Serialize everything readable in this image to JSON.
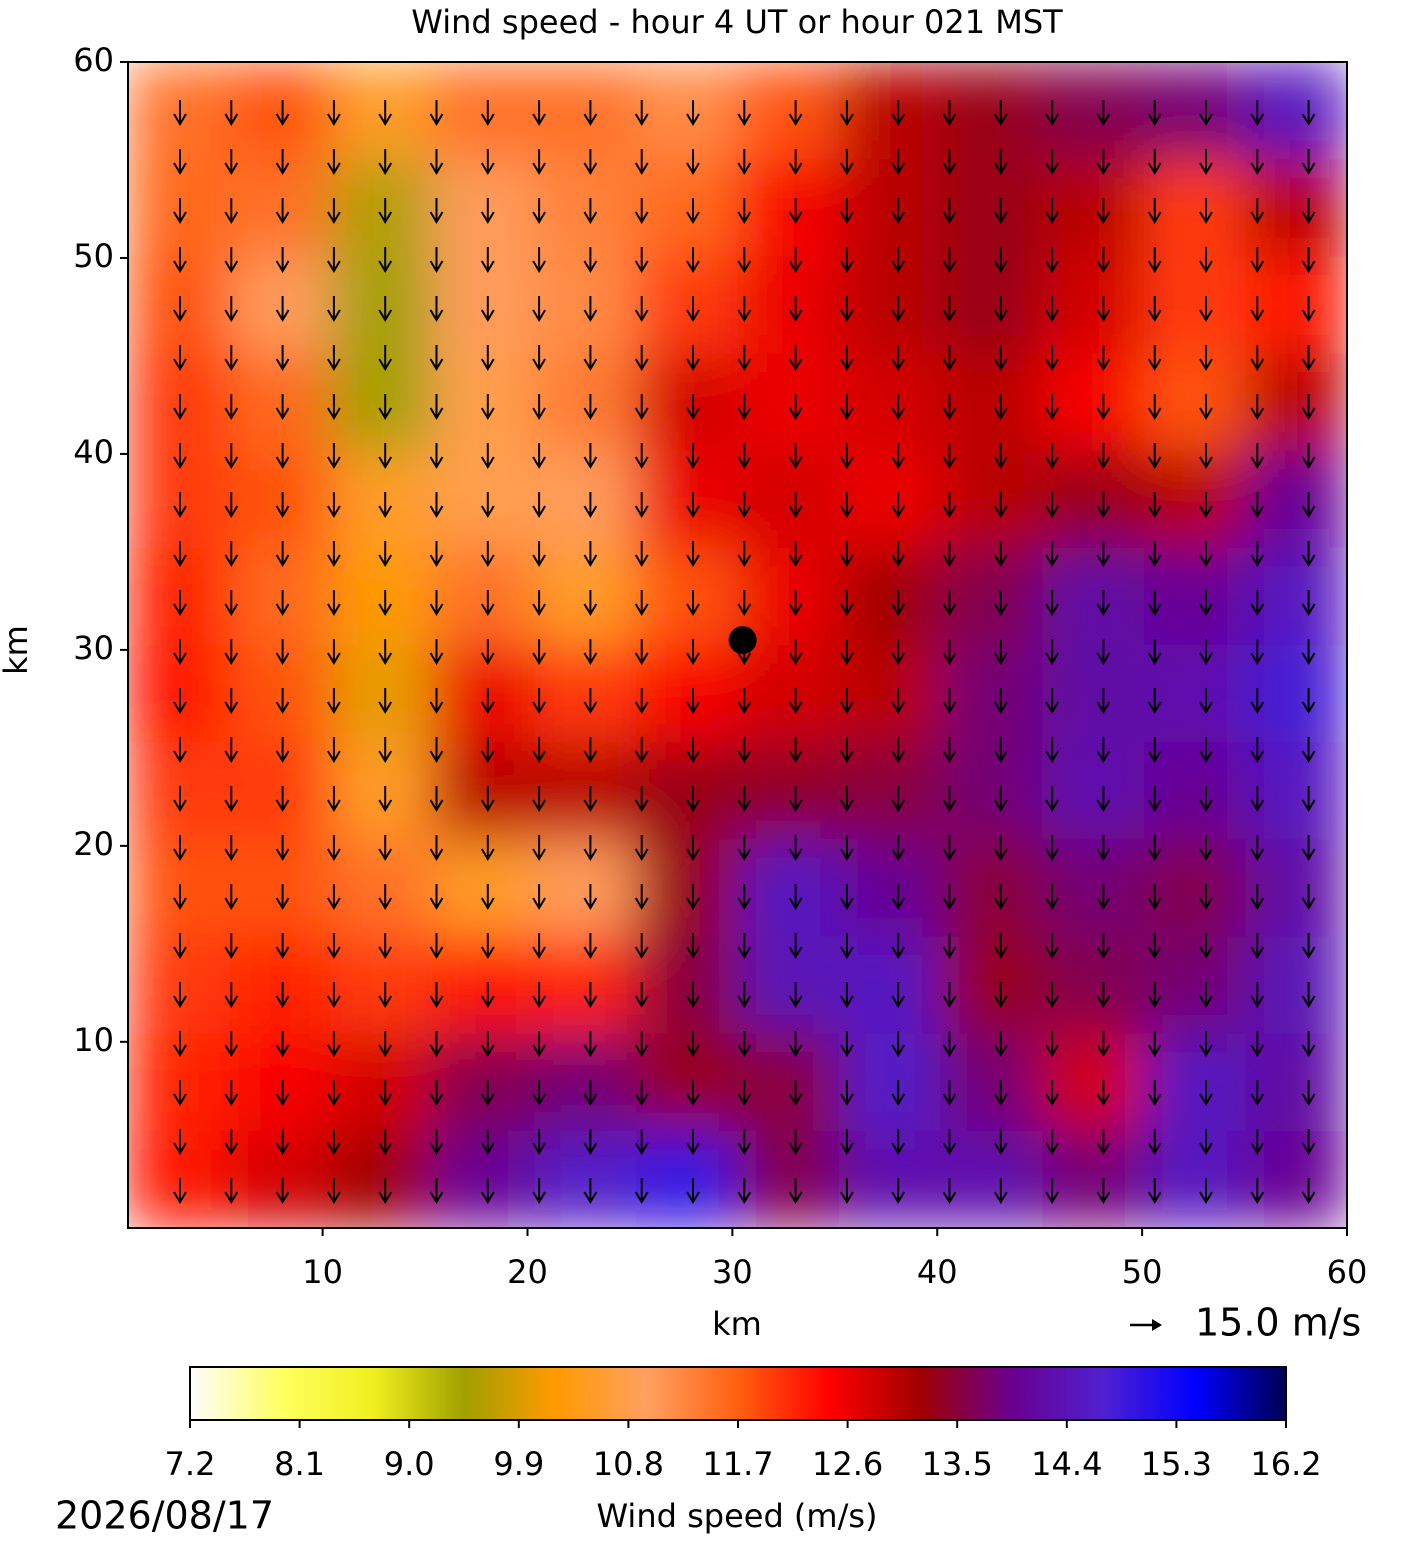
{
  "chart_data": {
    "type": "heatmap",
    "title": "Wind speed - hour 4 UT or hour 021 MST",
    "x_label": "km",
    "y_label": "km",
    "xlim": [
      0.5,
      60
    ],
    "ylim": [
      0.5,
      60
    ],
    "xticks": [
      10,
      20,
      30,
      40,
      50,
      60
    ],
    "yticks": [
      10,
      20,
      30,
      40,
      50,
      60
    ],
    "z": [
      [
        11.5,
        11.8,
        10.5,
        11.5,
        11.5,
        11.2,
        11.8,
        13.0,
        13.3,
        13.6,
        13.8,
        14.5
      ],
      [
        11.6,
        11.5,
        9.6,
        11.0,
        11.3,
        11.6,
        12.5,
        13.0,
        13.3,
        13.0,
        12.0,
        13.0
      ],
      [
        11.8,
        11.0,
        9.5,
        11.0,
        11.2,
        12.0,
        12.6,
        13.0,
        13.3,
        12.8,
        12.0,
        12.3
      ],
      [
        12.0,
        11.6,
        9.5,
        10.8,
        11.4,
        12.8,
        12.6,
        12.8,
        13.0,
        12.5,
        11.8,
        13.0
      ],
      [
        12.0,
        11.8,
        10.5,
        10.8,
        11.0,
        12.6,
        12.8,
        12.6,
        13.0,
        13.3,
        13.0,
        14.0
      ],
      [
        12.2,
        11.6,
        10.2,
        11.5,
        10.5,
        11.8,
        12.6,
        13.2,
        13.6,
        14.2,
        14.0,
        14.5
      ],
      [
        12.3,
        11.8,
        10.0,
        12.6,
        12.0,
        12.5,
        12.8,
        13.0,
        13.8,
        14.2,
        14.3,
        14.8
      ],
      [
        12.0,
        12.0,
        10.5,
        13.0,
        13.0,
        13.3,
        13.4,
        13.5,
        13.8,
        14.3,
        14.0,
        14.5
      ],
      [
        11.8,
        11.8,
        11.5,
        10.5,
        11.0,
        13.3,
        14.5,
        14.0,
        13.5,
        13.8,
        13.6,
        14.2
      ],
      [
        12.0,
        12.2,
        12.0,
        12.3,
        12.2,
        13.5,
        14.4,
        14.5,
        13.3,
        13.6,
        13.8,
        14.4
      ],
      [
        12.2,
        12.5,
        12.8,
        13.6,
        13.8,
        13.3,
        13.5,
        14.6,
        13.8,
        12.8,
        14.5,
        14.2
      ],
      [
        12.3,
        12.8,
        13.2,
        14.0,
        14.6,
        15.0,
        13.6,
        14.3,
        14.3,
        13.8,
        14.5,
        14.0
      ]
    ],
    "colors": [
      "#fdfdfd",
      "#ffff60",
      "#f0f020",
      "#a0a000",
      "#ff9a00",
      "#ffa060",
      "#ff6010",
      "#ff0000",
      "#a00000",
      "#6a0090",
      "#5020d0",
      "#0000ff",
      "#000050"
    ],
    "colorbar_label": "Wind speed (m/s)",
    "clim": [
      7.2,
      16.2
    ],
    "colorbar_ticks": [
      7.2,
      8.1,
      {
        "value": 9,
        "label": "9.0"
      },
      9.9,
      10.8,
      11.7,
      12.6,
      13.5,
      14.4,
      15.3,
      16.2
    ],
    "marker": {
      "x": 30.5,
      "y": 30.5
    },
    "quiver_key": {
      "value": 15,
      "label": "15.0 m/s"
    },
    "date": "2026/08/17"
  }
}
